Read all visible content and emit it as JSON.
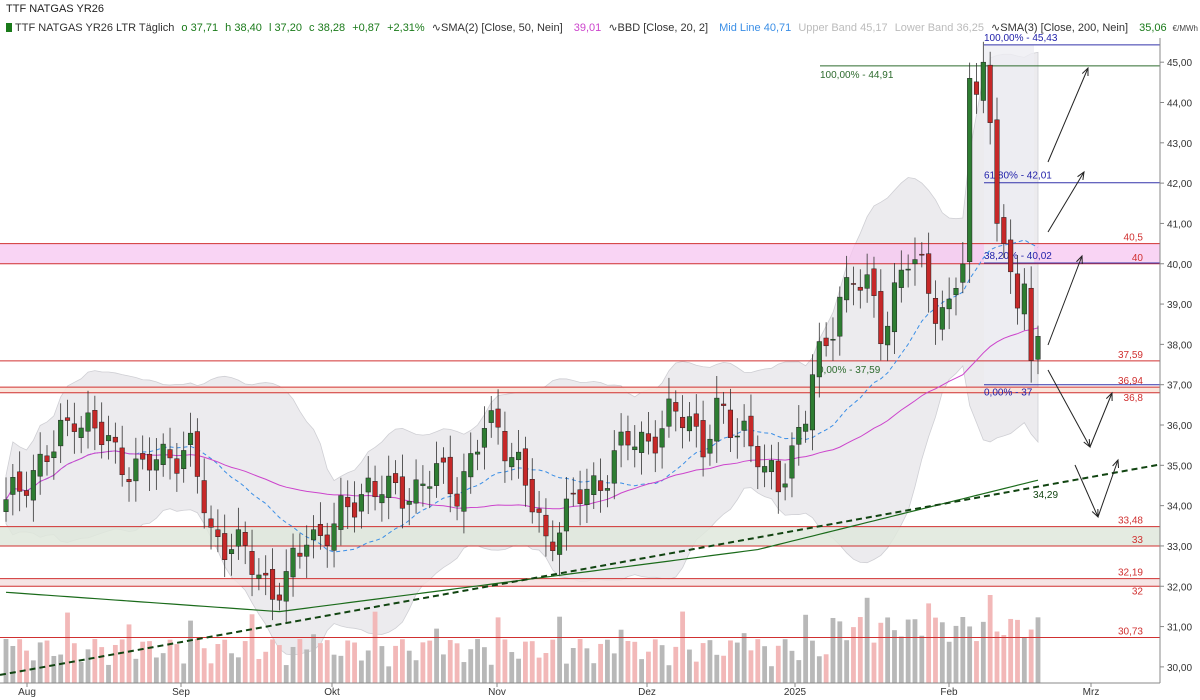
{
  "title": "TTF NATGAS YR26",
  "unit": "€/MWh",
  "legend": {
    "name": "TTF NATGAS YR26 LTR Täglich",
    "o": "o 37,71",
    "h": "h 38,40",
    "l": "l 37,20",
    "c": "c 38,28",
    "chg": "+0,87",
    "pct": "+2,31%",
    "sma50_label": "SMA(2) [Close, 50, Nein]",
    "sma50_val": "39,01",
    "bbd_label": "BBD [Close, 20, 2]",
    "mid": "Mid Line 40,71",
    "upper": "Upper Band 45,17",
    "lower": "Lower Band 36,25",
    "sma200_label": "SMA(3) [Close, 200, Nein]",
    "sma200_val": "35,06"
  },
  "colors": {
    "up": "#2e7d32",
    "down": "#c62828",
    "sma50": "#cc44cc",
    "mid": "#3a8ee6",
    "sma200": "#1b6b1b",
    "hline": "#d03030",
    "fib": "#2222aa",
    "band_fill": "#ecebee"
  },
  "chart_data": {
    "type": "candlestick",
    "x_labels": [
      "Aug",
      "Sep",
      "Okt",
      "Nov",
      "Dez",
      "2025",
      "Feb",
      "Mrz"
    ],
    "y_ticks": [
      "45,00",
      "44,00",
      "43,00",
      "42,00",
      "41,00",
      "40,00",
      "39,00",
      "38,00",
      "37,00",
      "36,00",
      "35,00",
      "34,00",
      "33,00",
      "32,00",
      "31,00",
      "30,00"
    ],
    "ylim": [
      29.6,
      45.6
    ],
    "horizontal_levels": [
      {
        "label": "40,5",
        "value": 40.5
      },
      {
        "label": "40",
        "value": 40.0
      },
      {
        "label": "37,59",
        "value": 37.59
      },
      {
        "label": "36,94",
        "value": 36.94
      },
      {
        "label": "36,8",
        "value": 36.8
      },
      {
        "label": "33,48",
        "value": 33.48
      },
      {
        "label": "33",
        "value": 33.0
      },
      {
        "label": "32,19",
        "value": 32.19
      },
      {
        "label": "32",
        "value": 32.0
      },
      {
        "label": "30,73",
        "value": 30.73
      }
    ],
    "fib_labels": [
      {
        "label": "100,00% - 45,43",
        "value": 45.43
      },
      {
        "label": "61,80% - 42,01",
        "value": 42.01
      },
      {
        "label": "38,20% - 40,02",
        "value": 40.02
      },
      {
        "label": "0,00% - 37",
        "value": 37.0
      },
      {
        "label": "100,00% - 44,91",
        "value": 44.91
      },
      {
        "label": "0,00% - 37,59",
        "value": 37.59
      }
    ],
    "trendline_label": "34,29",
    "last_close": 38.28
  }
}
